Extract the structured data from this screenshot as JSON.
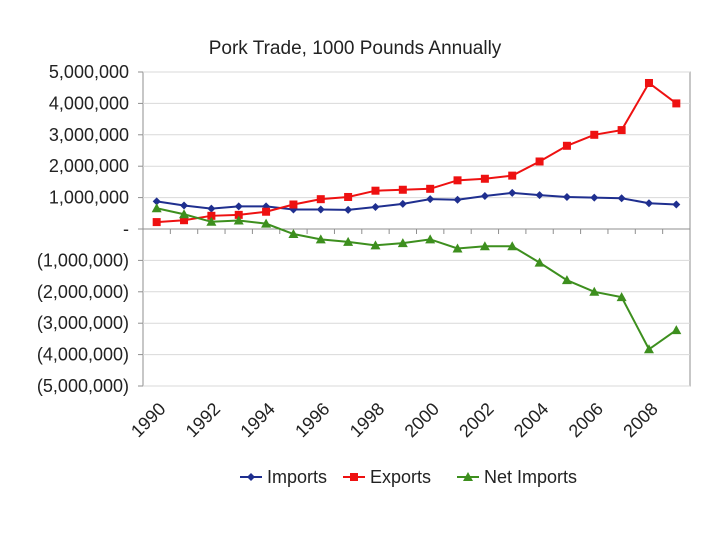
{
  "chart_data": {
    "type": "line",
    "title": "Pork Trade, 1000 Pounds Annually",
    "xlabel": "",
    "ylabel": "",
    "ylim": [
      -5000000,
      5000000
    ],
    "y_ticks": [
      5000000,
      4000000,
      3000000,
      2000000,
      1000000,
      0,
      -1000000,
      -2000000,
      -3000000,
      -4000000,
      -5000000
    ],
    "y_tick_labels": [
      "5,000,000",
      "4,000,000",
      "3,000,000",
      "2,000,000",
      "1,000,000",
      "-",
      "(1,000,000)",
      "(2,000,000)",
      "(3,000,000)",
      "(4,000,000)",
      "(5,000,000)"
    ],
    "x": [
      1990,
      1991,
      1992,
      1993,
      1994,
      1995,
      1996,
      1997,
      1998,
      1999,
      2000,
      2001,
      2002,
      2003,
      2004,
      2005,
      2006,
      2007,
      2008,
      2009
    ],
    "x_tick_labels": [
      "1990",
      "1992",
      "1994",
      "1996",
      "1998",
      "2000",
      "2002",
      "2004",
      "2006",
      "2008"
    ],
    "legend_position": "bottom",
    "series": [
      {
        "name": "Imports",
        "color": "#1f2f8f",
        "marker": "diamond",
        "values": [
          880000,
          750000,
          650000,
          720000,
          720000,
          620000,
          620000,
          610000,
          700000,
          800000,
          950000,
          930000,
          1050000,
          1150000,
          1080000,
          1020000,
          1000000,
          980000,
          820000,
          780000
        ]
      },
      {
        "name": "Exports",
        "color": "#ee1111",
        "marker": "square",
        "values": [
          220000,
          280000,
          420000,
          450000,
          550000,
          780000,
          950000,
          1020000,
          1220000,
          1250000,
          1280000,
          1550000,
          1600000,
          1700000,
          2150000,
          2650000,
          3000000,
          3150000,
          4650000,
          4000000
        ]
      },
      {
        "name": "Net Imports",
        "color": "#3d8f1e",
        "marker": "triangle",
        "values": [
          660000,
          470000,
          230000,
          270000,
          170000,
          -160000,
          -330000,
          -410000,
          -520000,
          -450000,
          -330000,
          -620000,
          -550000,
          -550000,
          -1070000,
          -1630000,
          -2000000,
          -2170000,
          -3830000,
          -3220000
        ]
      }
    ]
  }
}
